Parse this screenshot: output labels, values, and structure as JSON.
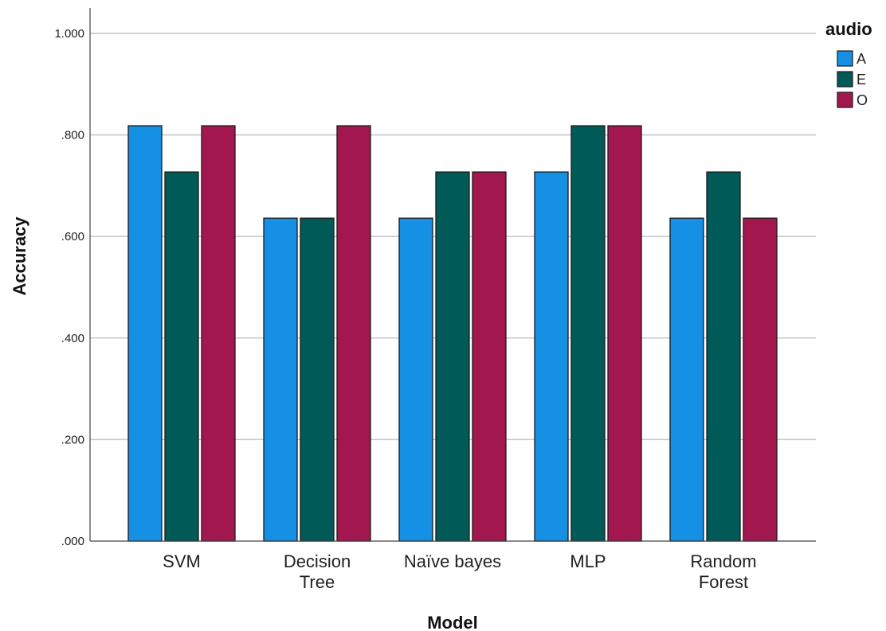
{
  "chart_data": {
    "type": "bar",
    "xlabel": "Model",
    "ylabel": "Accuracy",
    "categories": [
      "SVM",
      "Decision Tree",
      "Naïve bayes",
      "MLP",
      "Random Forest"
    ],
    "category_lines": [
      [
        "SVM"
      ],
      [
        "Decision",
        "Tree"
      ],
      [
        "Naïve bayes"
      ],
      [
        "MLP"
      ],
      [
        "Random",
        "Forest"
      ]
    ],
    "ylim": [
      0,
      1.05
    ],
    "yticks": [
      0,
      0.2,
      0.4,
      0.6,
      0.8,
      1.0
    ],
    "ytick_labels": [
      ".000",
      ".200",
      ".400",
      ".600",
      ".800",
      "1.000"
    ],
    "grid": true,
    "legend": {
      "title": "audio",
      "position": "top-right"
    },
    "series": [
      {
        "name": "A",
        "color": "#1590e4",
        "values": [
          0.818,
          0.636,
          0.636,
          0.727,
          0.636
        ]
      },
      {
        "name": "E",
        "color": "#005a58",
        "values": [
          0.727,
          0.636,
          0.727,
          0.818,
          0.727
        ]
      },
      {
        "name": "O",
        "color": "#a3174f",
        "values": [
          0.818,
          0.818,
          0.727,
          0.818,
          0.636
        ]
      }
    ]
  }
}
